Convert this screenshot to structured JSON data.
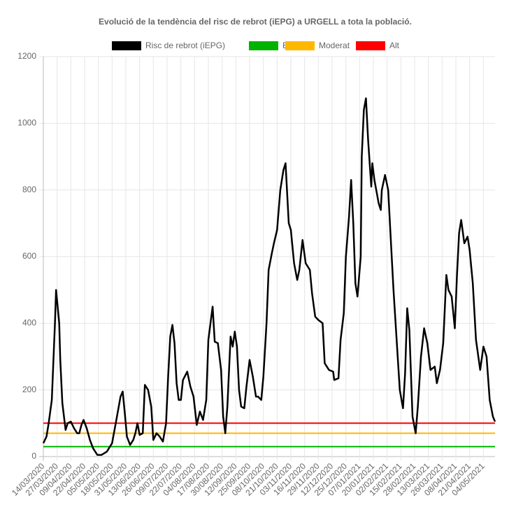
{
  "chart_data": {
    "type": "line",
    "title": "Evolució de la tendència del risc de rebrot (iEPG) a URGELL a tota la població.",
    "xlim": [
      "14/03/2020",
      "15/05/2021"
    ],
    "xticks": [
      "14/03/2020",
      "27/03/2020",
      "09/04/2020",
      "22/04/2020",
      "05/05/2020",
      "18/05/2020",
      "31/05/2020",
      "13/06/2020",
      "26/06/2020",
      "09/07/2020",
      "22/07/2020",
      "04/08/2020",
      "17/08/2020",
      "30/08/2020",
      "12/09/2020",
      "25/09/2020",
      "08/10/2020",
      "21/10/2020",
      "03/11/2020",
      "16/11/2020",
      "29/11/2020",
      "12/12/2020",
      "25/12/2020",
      "07/01/2021",
      "20/01/2021",
      "02/02/2021",
      "15/02/2021",
      "28/02/2021",
      "13/03/2021",
      "26/03/2021",
      "08/04/2021",
      "21/04/2021",
      "04/05/2021"
    ],
    "ylim": [
      0,
      1200
    ],
    "yticks": [
      0,
      200,
      400,
      600,
      800,
      1000,
      1200
    ],
    "grid": true,
    "legend": "top",
    "series": [
      {
        "name": "Risc de rebrot (iEPG)",
        "color": "#000000",
        "x": [
          "14/03/2020",
          "17/03/2020",
          "19/03/2020",
          "22/03/2020",
          "25/03/2020",
          "26/03/2020",
          "29/03/2020",
          "30/03/2020",
          "01/04/2020",
          "04/04/2020",
          "06/04/2020",
          "09/04/2020",
          "12/04/2020",
          "15/04/2020",
          "17/04/2020",
          "19/04/2020",
          "21/04/2020",
          "24/04/2020",
          "27/04/2020",
          "30/04/2020",
          "04/05/2020",
          "08/05/2020",
          "13/05/2020",
          "18/05/2020",
          "22/05/2020",
          "26/05/2020",
          "28/05/2020",
          "30/05/2020",
          "01/06/2020",
          "04/06/2020",
          "07/06/2020",
          "09/06/2020",
          "11/06/2020",
          "13/06/2020",
          "16/06/2020",
          "18/06/2020",
          "21/06/2020",
          "24/06/2020",
          "26/06/2020",
          "29/06/2020",
          "02/07/2020",
          "05/07/2020",
          "08/07/2020",
          "10/07/2020",
          "12/07/2020",
          "14/07/2020",
          "16/07/2020",
          "18/07/2020",
          "20/07/2020",
          "22/07/2020",
          "24/07/2020",
          "28/07/2020",
          "31/07/2020",
          "03/08/2020",
          "06/08/2020",
          "09/08/2020",
          "12/08/2020",
          "15/08/2020",
          "17/08/2020",
          "21/08/2020",
          "23/08/2020",
          "26/08/2020",
          "29/08/2020",
          "31/08/2020",
          "02/09/2020",
          "04/09/2020",
          "07/09/2020",
          "09/09/2020",
          "11/09/2020",
          "13/09/2020",
          "15/09/2020",
          "17/09/2020",
          "20/09/2020",
          "22/09/2020",
          "25/09/2020",
          "28/09/2020",
          "01/10/2020",
          "03/10/2020",
          "06/10/2020",
          "08/10/2020",
          "11/10/2020",
          "13/10/2020",
          "16/10/2020",
          "18/10/2020",
          "21/10/2020",
          "24/10/2020",
          "27/10/2020",
          "29/10/2020",
          "01/11/2020",
          "03/11/2020",
          "06/11/2020",
          "09/11/2020",
          "11/11/2020",
          "14/11/2020",
          "17/11/2020",
          "21/11/2020",
          "23/11/2020",
          "26/11/2020",
          "29/11/2020",
          "03/12/2020",
          "05/12/2020",
          "09/12/2020",
          "13/12/2020",
          "14/12/2020",
          "18/12/2020",
          "20/12/2020",
          "23/12/2020",
          "25/12/2020",
          "28/12/2020",
          "30/12/2020",
          "01/01/2021",
          "03/01/2021",
          "05/01/2021",
          "08/01/2021",
          "09/01/2021",
          "11/01/2021",
          "13/01/2021",
          "15/01/2021",
          "18/01/2021",
          "19/01/2021",
          "21/01/2021",
          "25/01/2021",
          "27/01/2021",
          "28/01/2021",
          "31/01/2021",
          "03/02/2021",
          "05/02/2021",
          "08/02/2021",
          "11/02/2021",
          "14/02/2021",
          "17/02/2021",
          "19/02/2021",
          "21/02/2021",
          "23/02/2021",
          "26/02/2021",
          "01/03/2021",
          "03/03/2021",
          "06/03/2021",
          "09/03/2021",
          "12/03/2021",
          "15/03/2021",
          "19/03/2021",
          "21/03/2021",
          "24/03/2021",
          "27/03/2021",
          "30/03/2021",
          "01/04/2021",
          "04/04/2021",
          "07/04/2021",
          "09/04/2021",
          "11/04/2021",
          "13/04/2021",
          "16/04/2021",
          "19/04/2021",
          "21/04/2021",
          "24/04/2021",
          "27/04/2021",
          "01/05/2021",
          "04/05/2021",
          "07/05/2021",
          "10/05/2021",
          "13/05/2021",
          "15/05/2021"
        ],
        "values": [
          40,
          60,
          100,
          170,
          400,
          500,
          400,
          290,
          160,
          80,
          100,
          105,
          85,
          70,
          70,
          95,
          110,
          85,
          50,
          25,
          5,
          5,
          15,
          40,
          110,
          180,
          195,
          130,
          60,
          35,
          50,
          70,
          100,
          65,
          70,
          215,
          200,
          150,
          50,
          70,
          60,
          45,
          100,
          240,
          360,
          395,
          340,
          220,
          170,
          170,
          230,
          255,
          210,
          180,
          95,
          135,
          110,
          170,
          350,
          450,
          345,
          340,
          260,
          120,
          70,
          150,
          360,
          330,
          375,
          330,
          200,
          150,
          145,
          210,
          290,
          240,
          180,
          180,
          170,
          240,
          400,
          560,
          610,
          640,
          680,
          800,
          860,
          880,
          700,
          680,
          580,
          530,
          560,
          650,
          580,
          560,
          490,
          420,
          410,
          400,
          280,
          260,
          255,
          230,
          235,
          350,
          430,
          600,
          720,
          830,
          700,
          520,
          480,
          600,
          900,
          1040,
          1075,
          950,
          810,
          880,
          830,
          760,
          740,
          800,
          845,
          800,
          680,
          500,
          350,
          200,
          145,
          250,
          445,
          380,
          120,
          70,
          150,
          300,
          385,
          340,
          260,
          270,
          220,
          260,
          340,
          545,
          500,
          480,
          385,
          540,
          670,
          710,
          640,
          660,
          620,
          520,
          350,
          260,
          330,
          300,
          170,
          120,
          105
        ]
      },
      {
        "name": "Baix",
        "color": "#00b300",
        "x": [
          "14/03/2020",
          "15/05/2021"
        ],
        "values": [
          30,
          30
        ]
      },
      {
        "name": "Moderat",
        "color": "#ffb800",
        "x": [
          "14/03/2020",
          "15/05/2021"
        ],
        "values": [
          70,
          70
        ]
      },
      {
        "name": "Alt",
        "color": "#ff0000",
        "x": [
          "14/03/2020",
          "15/05/2021"
        ],
        "values": [
          100,
          100
        ]
      }
    ]
  }
}
